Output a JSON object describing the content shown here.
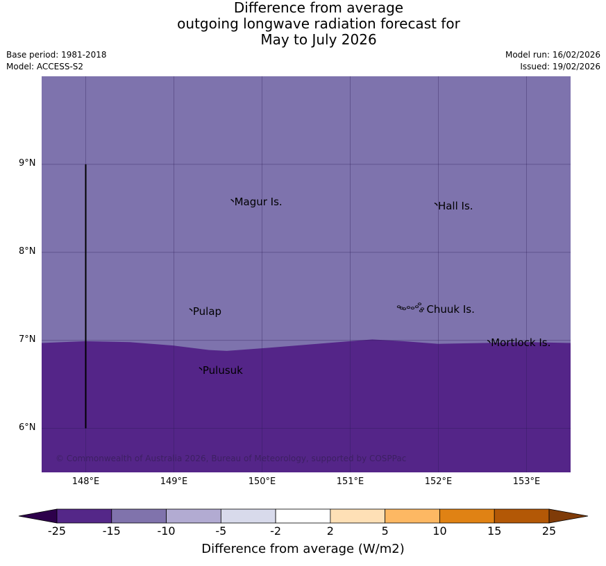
{
  "title": {
    "line1": "Difference from average",
    "line2": "outgoing longwave radiation forecast for",
    "line3": "May to July 2026"
  },
  "meta": {
    "base_period": "Base period: 1981-2018",
    "model": "Model: ACCESS-S2",
    "model_run": "Model run: 16/02/2026",
    "issued": "Issued: 19/02/2026"
  },
  "map": {
    "lon_range": [
      147.5,
      153.5
    ],
    "lat_range": [
      5.5,
      10.0
    ],
    "lat_ticks": [
      {
        "value": 9,
        "label": "9°N"
      },
      {
        "value": 8,
        "label": "8°N"
      },
      {
        "value": 7,
        "label": "7°N"
      },
      {
        "value": 6,
        "label": "6°N"
      }
    ],
    "lon_ticks": [
      {
        "value": 148,
        "label": "148°E"
      },
      {
        "value": 149,
        "label": "149°E"
      },
      {
        "value": 150,
        "label": "150°E"
      },
      {
        "value": 151,
        "label": "151°E"
      },
      {
        "value": 152,
        "label": "152°E"
      },
      {
        "value": 153,
        "label": "153°E"
      }
    ],
    "boundary_lat": [
      {
        "lon": 147.5,
        "lat": 6.97
      },
      {
        "lon": 148.0,
        "lat": 6.99
      },
      {
        "lon": 148.5,
        "lat": 6.98
      },
      {
        "lon": 149.0,
        "lat": 6.94
      },
      {
        "lon": 149.4,
        "lat": 6.89
      },
      {
        "lon": 149.6,
        "lat": 6.88
      },
      {
        "lon": 150.0,
        "lat": 6.91
      },
      {
        "lon": 150.5,
        "lat": 6.95
      },
      {
        "lon": 151.0,
        "lat": 6.99
      },
      {
        "lon": 151.25,
        "lat": 7.01
      },
      {
        "lon": 151.6,
        "lat": 6.99
      },
      {
        "lon": 152.0,
        "lat": 6.96
      },
      {
        "lon": 152.5,
        "lat": 6.97
      },
      {
        "lon": 153.0,
        "lat": 6.98
      },
      {
        "lon": 153.5,
        "lat": 6.97
      }
    ],
    "upper_color": "#7e73ad",
    "lower_color": "#542588",
    "vertical_line": {
      "lon": 148.0,
      "lat_from": 6.0,
      "lat_to": 9.0
    },
    "islands": [
      {
        "name": "Magur Is.",
        "lon": 149.67,
        "lat": 8.57
      },
      {
        "name": "Hall Is.",
        "lon": 151.98,
        "lat": 8.53
      },
      {
        "name": "Pulap",
        "lon": 149.2,
        "lat": 7.33
      },
      {
        "name": "Chuuk Is.",
        "lon": 151.85,
        "lat": 7.35
      },
      {
        "name": "Mortlock Is.",
        "lon": 152.58,
        "lat": 6.97
      },
      {
        "name": "Pulusuk",
        "lon": 149.31,
        "lat": 6.66
      }
    ],
    "copyright": "© Commonwealth of Australia 2026, Bureau of Meteorology, supported by COSPPac"
  },
  "colorbar": {
    "title": "Difference from average (W/m2)",
    "under_color": "#2d004b",
    "over_color": "#7f3b08",
    "bins": [
      {
        "color": "#542788"
      },
      {
        "color": "#8073ac"
      },
      {
        "color": "#b2abd2"
      },
      {
        "color": "#d8daeb"
      },
      {
        "color": "#ffffff"
      },
      {
        "color": "#fee0b6"
      },
      {
        "color": "#fdb863"
      },
      {
        "color": "#e08214"
      },
      {
        "color": "#b35806"
      }
    ],
    "labels": [
      "-25",
      "-15",
      "-10",
      "-5",
      "-2",
      "2",
      "5",
      "10",
      "15",
      "25"
    ]
  }
}
